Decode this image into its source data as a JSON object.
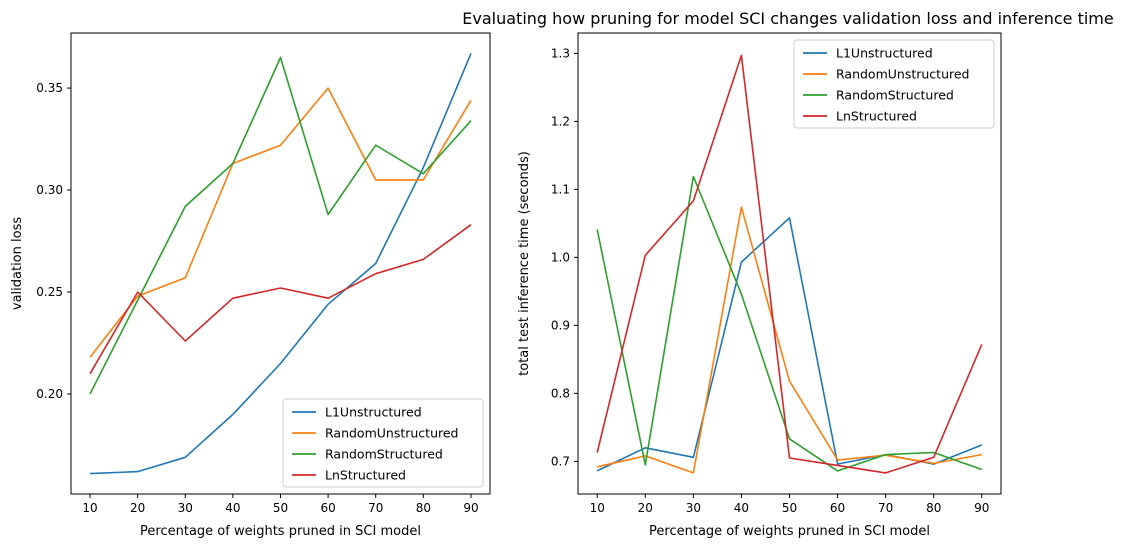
{
  "title": "Evaluating how pruning for model SCI changes validation loss and inference time",
  "chart_data": [
    {
      "type": "line",
      "xlabel": "Percentage of weights pruned in SCI model",
      "ylabel": "validation loss",
      "x": [
        10,
        20,
        30,
        40,
        50,
        60,
        70,
        80,
        90
      ],
      "xticks": [
        "10",
        "20",
        "30",
        "40",
        "50",
        "60",
        "70",
        "80",
        "90"
      ],
      "yticks": [
        "0.20",
        "0.25",
        "0.30",
        "0.35"
      ],
      "xlim": [
        6,
        94
      ],
      "ylim": [
        0.151,
        0.377
      ],
      "legend": "lower-right",
      "series": [
        {
          "name": "L1Unstructured",
          "color": "#1f77b4",
          "values": [
            0.161,
            0.162,
            0.169,
            0.19,
            0.215,
            0.244,
            0.264,
            0.311,
            0.367
          ]
        },
        {
          "name": "RandomUnstructured",
          "color": "#ff7f0e",
          "values": [
            0.218,
            0.248,
            0.257,
            0.313,
            0.322,
            0.35,
            0.305,
            0.305,
            0.344
          ]
        },
        {
          "name": "RandomStructured",
          "color": "#2ca02c",
          "values": [
            0.2,
            0.246,
            0.292,
            0.313,
            0.365,
            0.288,
            0.322,
            0.308,
            0.334
          ]
        },
        {
          "name": "LnStructured",
          "color": "#d62728",
          "values": [
            0.21,
            0.25,
            0.226,
            0.247,
            0.252,
            0.247,
            0.259,
            0.266,
            0.283
          ]
        }
      ]
    },
    {
      "type": "line",
      "xlabel": "Percentage of weights pruned in SCI model",
      "ylabel": "total test inference time (seconds)",
      "x": [
        10,
        20,
        30,
        40,
        50,
        60,
        70,
        80,
        90
      ],
      "xticks": [
        "10",
        "20",
        "30",
        "40",
        "50",
        "60",
        "70",
        "80",
        "90"
      ],
      "yticks": [
        "0.7",
        "0.8",
        "0.9",
        "1.0",
        "1.1",
        "1.2",
        "1.3"
      ],
      "xlim": [
        6,
        94
      ],
      "ylim": [
        0.652,
        1.33
      ],
      "legend": "top-right",
      "series": [
        {
          "name": "L1Unstructured",
          "color": "#1f77b4",
          "values": [
            0.686,
            0.72,
            0.706,
            0.993,
            1.058,
            0.696,
            0.71,
            0.696,
            0.724
          ]
        },
        {
          "name": "RandomUnstructured",
          "color": "#ff7f0e",
          "values": [
            0.692,
            0.708,
            0.683,
            1.074,
            0.818,
            0.702,
            0.709,
            0.697,
            0.71
          ]
        },
        {
          "name": "RandomStructured",
          "color": "#2ca02c",
          "values": [
            1.041,
            0.695,
            1.119,
            0.946,
            0.733,
            0.686,
            0.71,
            0.713,
            0.688
          ]
        },
        {
          "name": "LnStructured",
          "color": "#d62728",
          "values": [
            0.713,
            1.003,
            1.083,
            1.297,
            0.705,
            0.694,
            0.683,
            0.706,
            0.872
          ]
        }
      ]
    }
  ]
}
